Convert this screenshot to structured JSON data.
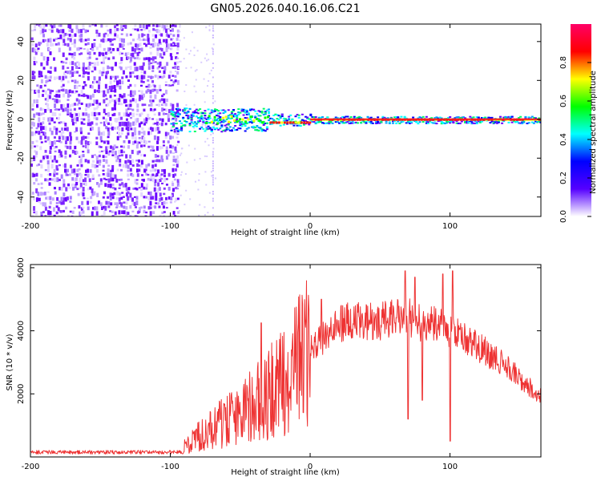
{
  "title": "GN05.2026.040.16.06.C21",
  "chart_data": [
    {
      "type": "heatmap",
      "xlabel": "Height of straight line (km)",
      "ylabel": "Frequency (Hz)",
      "xlim": [
        -200,
        165
      ],
      "ylim": [
        -50,
        49
      ],
      "xticks": [
        -200,
        -100,
        0,
        100
      ],
      "yticks": [
        -40,
        -20,
        0,
        20,
        40
      ],
      "noise_region_km": [
        -200,
        -95
      ],
      "signal_line_hz": 0,
      "colorbar": {
        "label": "Normalized spectral amplitude",
        "range": [
          0,
          1
        ],
        "ticks": [
          0.0,
          0.2,
          0.4,
          0.6,
          0.8
        ],
        "tick_labels": [
          "0.0",
          "0.2",
          "0.4",
          "0.6",
          "0.8"
        ],
        "stops": [
          "#ffffff",
          "#5500ff",
          "#0000ff",
          "#00ffff",
          "#00ff00",
          "#ffff00",
          "#ff0000",
          "#ff0066"
        ]
      }
    },
    {
      "type": "line",
      "xlabel": "Height of straight line (km)",
      "ylabel": "SNR (10 * v/v)",
      "xlim": [
        -200,
        165
      ],
      "ylim": [
        0,
        6100
      ],
      "xticks": [
        -200,
        -100,
        0,
        100
      ],
      "yticks": [
        2000,
        4000,
        6000
      ],
      "color": "#ee3333",
      "envelope": {
        "x": [
          -200,
          -150,
          -110,
          -95,
          -85,
          -70,
          -55,
          -40,
          -30,
          -20,
          -10,
          0,
          10,
          20,
          30,
          40,
          50,
          60,
          70,
          80,
          90,
          100,
          110,
          120,
          130,
          140,
          150,
          165
        ],
        "y": [
          120,
          130,
          150,
          180,
          500,
          900,
          1300,
          1700,
          2000,
          2300,
          2800,
          3400,
          3800,
          4200,
          4350,
          4300,
          4300,
          4400,
          4450,
          4200,
          4200,
          4000,
          3850,
          3500,
          3200,
          2900,
          2500,
          1900
        ]
      },
      "spikes": [
        {
          "x": -35,
          "y": 4250
        },
        {
          "x": 8,
          "y": 5000
        },
        {
          "x": 68,
          "y": 5900
        },
        {
          "x": 70,
          "y": 1200
        },
        {
          "x": 75,
          "y": 5700
        },
        {
          "x": 80,
          "y": 1800
        },
        {
          "x": 95,
          "y": 5800
        },
        {
          "x": 100,
          "y": 500
        },
        {
          "x": 102,
          "y": 5900
        }
      ]
    }
  ]
}
